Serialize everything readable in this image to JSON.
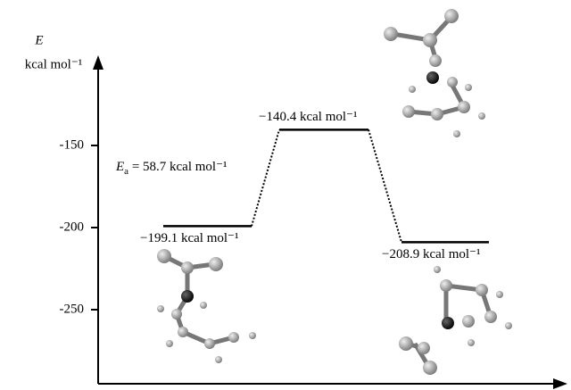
{
  "chart_data": {
    "type": "profile",
    "y_label": "E",
    "y_unit": "kcal mol⁻¹",
    "values": [
      -199.1,
      -140.4,
      -208.9
    ],
    "value_labels": [
      "−199.1 kcal mol⁻¹",
      "−140.4 kcal mol⁻¹",
      "−208.9 kcal mol⁻¹"
    ],
    "annotation": {
      "symbol": "E",
      "subscript": "a",
      "text": " = 58.7 kcal mol⁻¹"
    },
    "ylim": [
      -295,
      -100
    ],
    "yticks": [
      -150,
      -200,
      -250
    ],
    "color": "#000000"
  }
}
